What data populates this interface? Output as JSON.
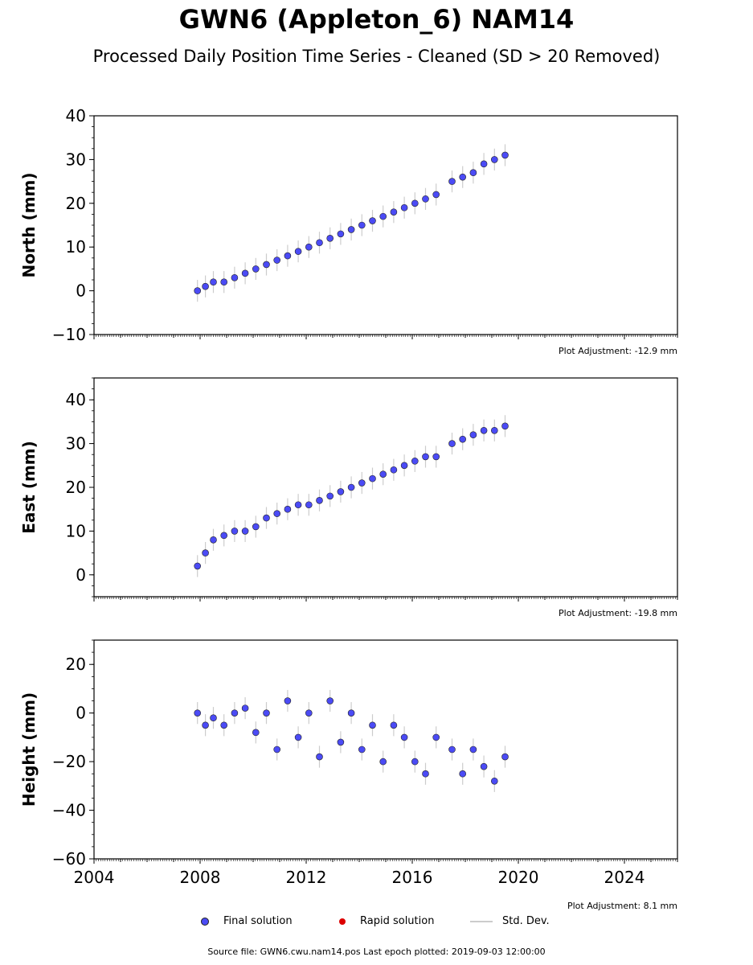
{
  "title": "GWN6 (Appleton_6) NAM14",
  "subtitle": "Processed Daily Position Time Series - Cleaned (SD > 20 Removed)",
  "source": "Source file: GWN6.cwu.nam14.pos  Last epoch plotted: 2019-09-03 12:00:00",
  "legend": {
    "final": "Final solution",
    "rapid": "Rapid solution",
    "stddev": "Std. Dev."
  },
  "colors": {
    "final": "#4b4bf5",
    "rapid": "#dd0000",
    "stddev": "#cccccc"
  },
  "chart_data": [
    {
      "type": "scatter",
      "ylabel": "North (mm)",
      "ylim": [
        -10,
        40
      ],
      "yticks": [
        -10,
        0,
        10,
        20,
        30,
        40
      ],
      "xlim": [
        2004,
        2026
      ],
      "adjustment": "Plot Adjustment: -12.9 mm",
      "series": [
        {
          "name": "Final solution",
          "x": [
            2007.9,
            2008.2,
            2008.5,
            2008.9,
            2009.3,
            2009.7,
            2010.1,
            2010.5,
            2010.9,
            2011.3,
            2011.7,
            2012.1,
            2012.5,
            2012.9,
            2013.3,
            2013.7,
            2014.1,
            2014.5,
            2014.9,
            2015.3,
            2015.7,
            2016.1,
            2016.5,
            2016.9,
            2017.5,
            2017.9,
            2018.3,
            2018.7,
            2019.1,
            2019.5
          ],
          "y": [
            0,
            1,
            2,
            2,
            3,
            4,
            5,
            6,
            7,
            8,
            9,
            10,
            11,
            12,
            13,
            14,
            15,
            16,
            17,
            18,
            19,
            20,
            21,
            22,
            25,
            26,
            27,
            29,
            30,
            31
          ]
        }
      ]
    },
    {
      "type": "scatter",
      "ylabel": "East (mm)",
      "ylim": [
        -5,
        45
      ],
      "yticks": [
        0,
        10,
        20,
        30,
        40
      ],
      "xlim": [
        2004,
        2026
      ],
      "adjustment": "Plot Adjustment: -19.8 mm",
      "series": [
        {
          "name": "Final solution",
          "x": [
            2007.9,
            2008.2,
            2008.5,
            2008.9,
            2009.3,
            2009.7,
            2010.1,
            2010.5,
            2010.9,
            2011.3,
            2011.7,
            2012.1,
            2012.5,
            2012.9,
            2013.3,
            2013.7,
            2014.1,
            2014.5,
            2014.9,
            2015.3,
            2015.7,
            2016.1,
            2016.5,
            2016.9,
            2017.5,
            2017.9,
            2018.3,
            2018.7,
            2019.1,
            2019.5
          ],
          "y": [
            2,
            5,
            8,
            9,
            10,
            10,
            11,
            13,
            14,
            15,
            16,
            16,
            17,
            18,
            19,
            20,
            21,
            22,
            23,
            24,
            25,
            26,
            27,
            27,
            30,
            31,
            32,
            33,
            33,
            34
          ]
        }
      ]
    },
    {
      "type": "scatter",
      "ylabel": "Height (mm)",
      "ylim": [
        -60,
        30
      ],
      "yticks": [
        -60,
        -40,
        -20,
        0,
        20
      ],
      "xlim": [
        2004,
        2026
      ],
      "xticks": [
        2004,
        2008,
        2012,
        2016,
        2020,
        2024
      ],
      "adjustment": "Plot Adjustment: 8.1 mm",
      "series": [
        {
          "name": "Final solution",
          "x": [
            2007.9,
            2008.2,
            2008.5,
            2008.9,
            2009.3,
            2009.7,
            2010.1,
            2010.5,
            2010.9,
            2011.3,
            2011.7,
            2012.1,
            2012.5,
            2012.9,
            2013.3,
            2013.7,
            2014.1,
            2014.5,
            2014.9,
            2015.3,
            2015.7,
            2016.1,
            2016.5,
            2016.9,
            2017.5,
            2017.9,
            2018.3,
            2018.7,
            2019.1,
            2019.5
          ],
          "y": [
            0,
            -5,
            -2,
            -5,
            0,
            2,
            -8,
            0,
            -15,
            5,
            -10,
            0,
            -18,
            5,
            -12,
            0,
            -15,
            -5,
            -20,
            -5,
            -10,
            -20,
            -25,
            -10,
            -15,
            -25,
            -15,
            -22,
            -28,
            -18
          ]
        }
      ]
    }
  ]
}
